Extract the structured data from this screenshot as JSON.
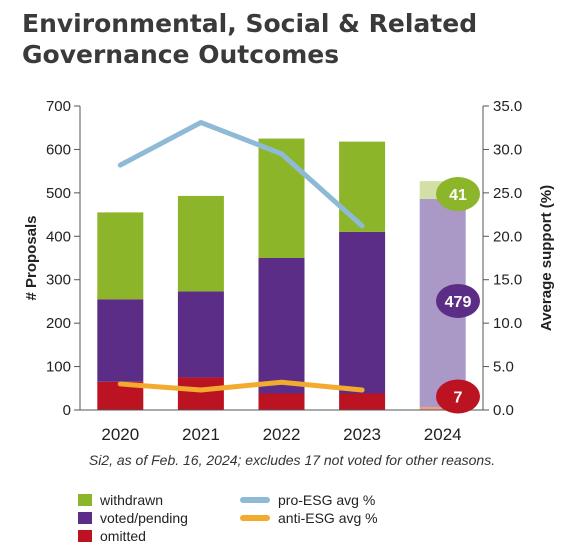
{
  "title_lines": [
    "Environmental, Social & Related",
    "Governance Outcomes"
  ],
  "note": "Si2, as of Feb. 16, 2024; excludes 17 not voted for other reasons.",
  "colors": {
    "withdrawn": "#8db52a",
    "voted_pending": "#5c2d86",
    "omitted": "#bb1321",
    "withdrawn_light": "#d2dfa6",
    "voted_pending_light": "#aa98c6",
    "omitted_light": "#ee9f86",
    "pro_esg": "#8fbad6",
    "anti_esg": "#f2ab2e"
  },
  "legend": {
    "withdrawn": "withdrawn",
    "voted_pending": "voted/pending",
    "omitted": "omitted",
    "pro_esg": "pro-ESG avg %",
    "anti_esg": "anti-ESG avg %"
  },
  "chart_data": {
    "type": "bar",
    "stacked": true,
    "categories": [
      "2020",
      "2021",
      "2022",
      "2023",
      "2024"
    ],
    "ylabel": "# Proposals",
    "y2label": "Average support (%)",
    "ylim": [
      0,
      700
    ],
    "y2lim": [
      0,
      35
    ],
    "yticks": [
      "0",
      "100",
      "200",
      "300",
      "400",
      "500",
      "600",
      "700"
    ],
    "y2ticks": [
      "0.0",
      "5.0",
      "10.0",
      "15.0",
      "20.0",
      "25.0",
      "30.0",
      "35.0"
    ],
    "series": [
      {
        "name": "omitted",
        "values": [
          65,
          75,
          38,
          38,
          7
        ]
      },
      {
        "name": "voted/pending",
        "values": [
          190,
          198,
          312,
          372,
          479
        ]
      },
      {
        "name": "withdrawn",
        "values": [
          200,
          220,
          275,
          208,
          41
        ]
      }
    ],
    "lines": [
      {
        "name": "pro-ESG avg %",
        "axis": "y2",
        "values": [
          28.2,
          33.1,
          29.5,
          21.2,
          null
        ]
      },
      {
        "name": "anti-ESG avg %",
        "axis": "y2",
        "values": [
          3.0,
          2.3,
          3.2,
          2.3,
          null
        ]
      }
    ],
    "labels_2024": [
      "41",
      "479",
      "7"
    ]
  }
}
